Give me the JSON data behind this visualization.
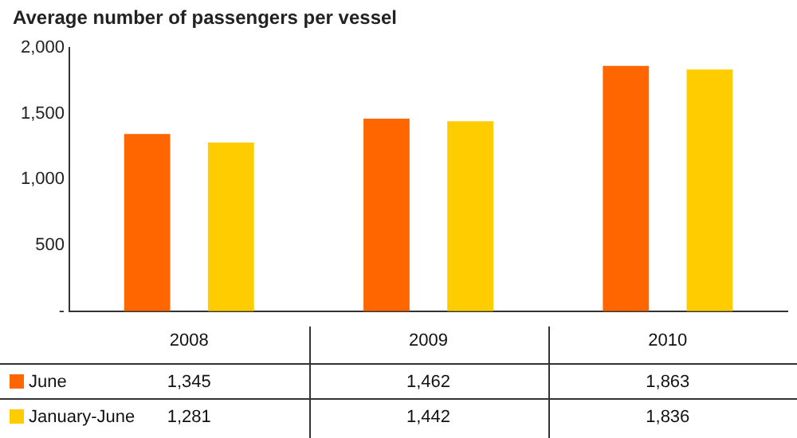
{
  "chart_data": {
    "type": "bar",
    "title": "Average number of passengers per vessel",
    "categories": [
      "2008",
      "2009",
      "2010"
    ],
    "series": [
      {
        "name": "June",
        "color": "#ff6600",
        "values": [
          1345,
          1462,
          1863
        ],
        "value_labels": [
          "1,345",
          "1,462",
          "1,863"
        ]
      },
      {
        "name": "January-June",
        "color": "#ffcc00",
        "values": [
          1281,
          1442,
          1836
        ],
        "value_labels": [
          "1,281",
          "1,442",
          "1,836"
        ]
      }
    ],
    "ylim": [
      0,
      2000
    ],
    "yticks": [
      {
        "value": 0,
        "label": "-"
      },
      500,
      {
        "value": 1000,
        "label": "1,000"
      },
      {
        "value": 1500,
        "label": "1,500"
      },
      {
        "value": 2000,
        "label": "2,000"
      }
    ],
    "grid": false,
    "legend": "bottom left"
  }
}
